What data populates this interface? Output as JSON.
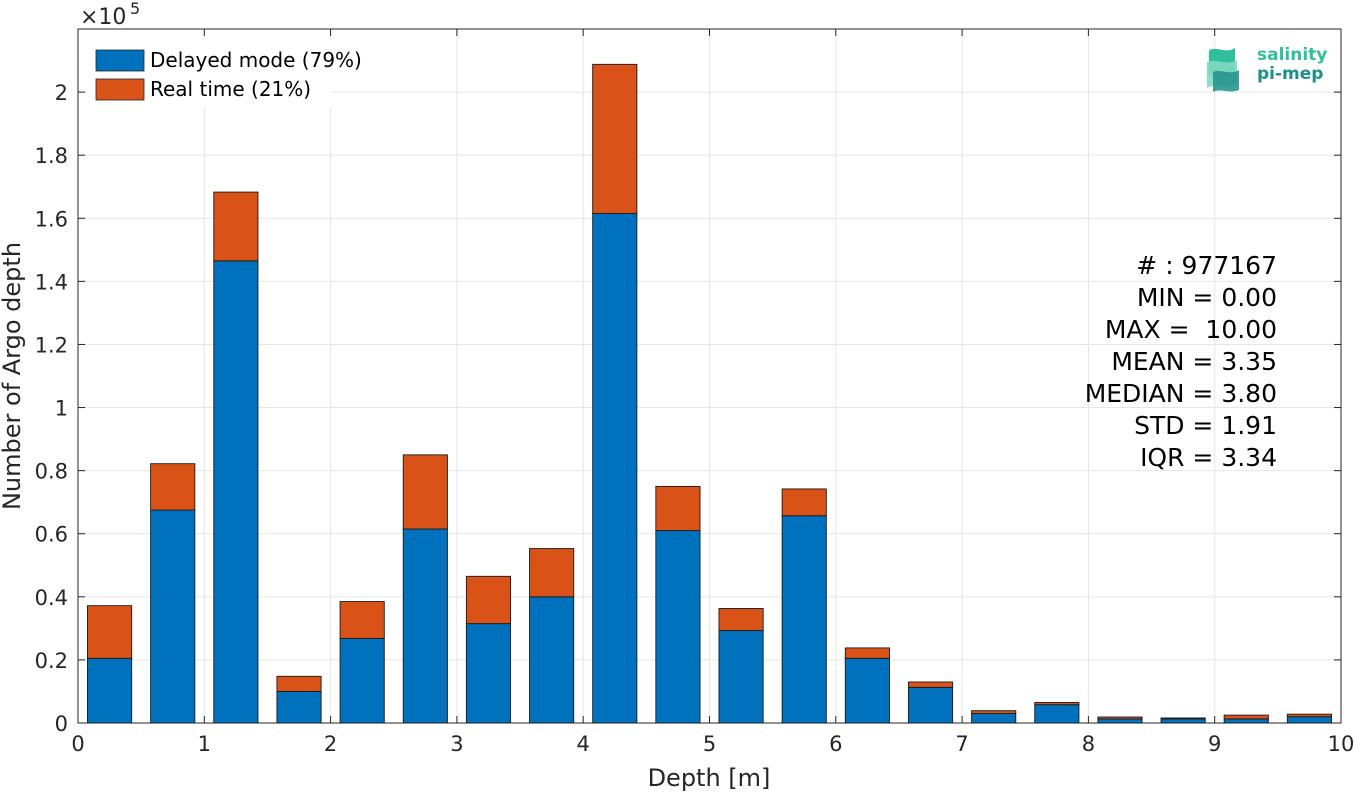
{
  "chart_data": {
    "type": "bar",
    "stacked": true,
    "exponent_label": "×10^5",
    "exponent_base": "×10",
    "exponent_power": "5",
    "xlabel": "Depth [m]",
    "ylabel": "Number of Argo depth",
    "xlim": [
      0,
      10
    ],
    "ylim": [
      0,
      2.2
    ],
    "grid": true,
    "legend_position": "top-left",
    "bin_centers": [
      0.25,
      0.75,
      1.25,
      1.75,
      2.25,
      2.75,
      3.25,
      3.75,
      4.25,
      4.75,
      5.25,
      5.75,
      6.25,
      6.75,
      7.25,
      7.75,
      8.25,
      8.75,
      9.25,
      9.75
    ],
    "bar_width": 0.35,
    "x_ticks": [
      "0",
      "1",
      "2",
      "3",
      "4",
      "5",
      "6",
      "7",
      "8",
      "9",
      "10"
    ],
    "y_ticks": [
      "0",
      "0.2",
      "0.4",
      "0.6",
      "0.8",
      "1",
      "1.2",
      "1.4",
      "1.6",
      "1.8",
      "2"
    ],
    "series": [
      {
        "name": "Delayed mode (79%)",
        "color": "#0072BD",
        "values": [
          0.205,
          0.675,
          1.465,
          0.1,
          0.268,
          0.615,
          0.315,
          0.4,
          1.615,
          0.61,
          0.293,
          0.657,
          0.205,
          0.113,
          0.03,
          0.058,
          0.013,
          0.013,
          0.013,
          0.02
        ]
      },
      {
        "name": "Real time (21%)",
        "color": "#D95319",
        "values": [
          0.167,
          0.147,
          0.218,
          0.048,
          0.117,
          0.235,
          0.15,
          0.153,
          0.473,
          0.14,
          0.07,
          0.085,
          0.033,
          0.017,
          0.009,
          0.007,
          0.006,
          0.003,
          0.012,
          0.008
        ]
      }
    ]
  },
  "stats": {
    "count": "# : 977167",
    "min": "MIN = 0.00",
    "max": "MAX =  10.00",
    "mean": "MEAN = 3.35",
    "median": "MEDIAN = 3.80",
    "std": "STD = 1.91",
    "iqr": "IQR = 3.34"
  },
  "logo": {
    "line1": "salinity",
    "line2": "pi-mep",
    "colors": [
      "#2fbf9c",
      "#1f8f8a",
      "#7fd9c0"
    ]
  }
}
